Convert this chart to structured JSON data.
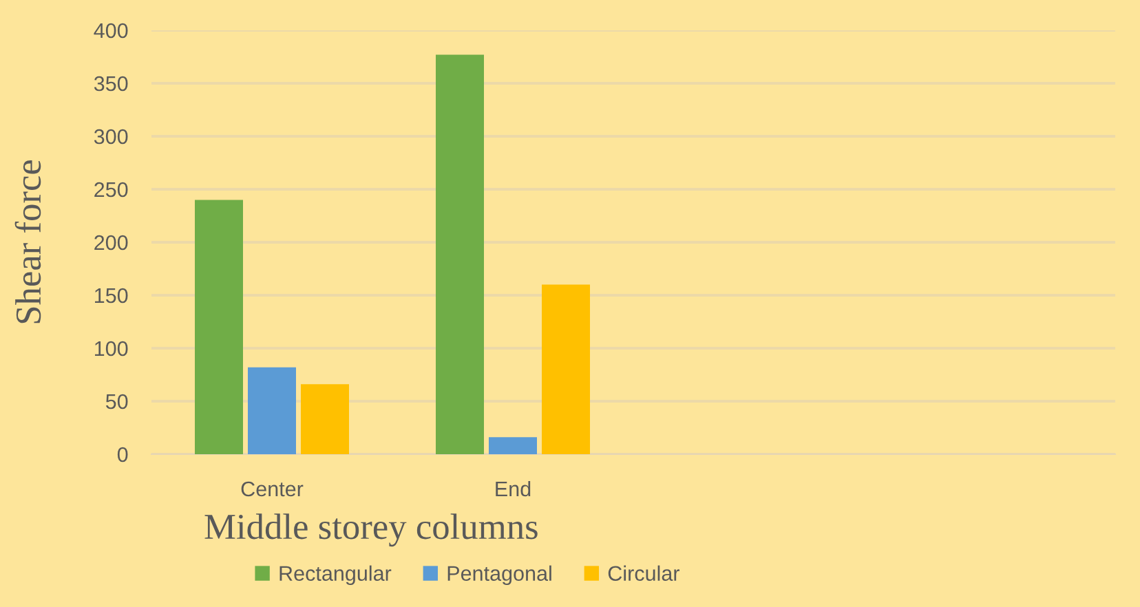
{
  "chart_data": {
    "type": "bar",
    "xlabel": "Middle storey columns",
    "ylabel": "Shear force",
    "categories": [
      "Center",
      "End",
      null,
      null
    ],
    "series": [
      {
        "name": "Rectangular",
        "color": "#70ad47",
        "values": [
          240,
          377,
          null,
          null
        ]
      },
      {
        "name": "Pentagonal",
        "color": "#5b9bd5",
        "values": [
          82,
          16,
          null,
          null
        ]
      },
      {
        "name": "Circular",
        "color": "#ffc000",
        "values": [
          66,
          160,
          null,
          null
        ]
      }
    ],
    "ylim": [
      0,
      400
    ],
    "yticks": [
      0,
      50,
      100,
      150,
      200,
      250,
      300,
      350,
      400
    ],
    "grid": "y",
    "legend": "bottom"
  }
}
